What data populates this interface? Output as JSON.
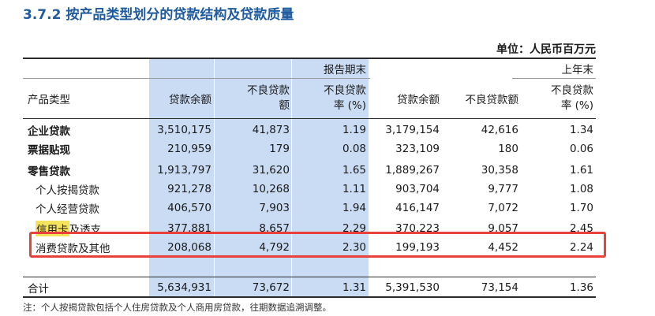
{
  "title": "3.7.2  按产品类型划分的贷款结构及贷款质量",
  "unit": "单位：人民币百万元",
  "header": {
    "period_current": "报告期末",
    "period_prior": "上年末",
    "product_type": "产品类型",
    "loan_balance": "贷款余额",
    "npl_amount_line1": "不良贷款",
    "npl_amount_line2": "额",
    "npl_ratio_line1": "不良贷款",
    "npl_ratio_line2": "率 (%)",
    "prior_loan_balance": "贷款余额",
    "prior_npl_amount": "不良贷款额",
    "prior_npl_ratio_line1": "不良贷款",
    "prior_npl_ratio_line2": "率 (%)"
  },
  "rows": [
    {
      "name": "企业贷款",
      "bold": true,
      "v": [
        "3,510,175",
        "41,873",
        "1.19",
        "3,179,154",
        "42,616",
        "1.34"
      ]
    },
    {
      "name": "票据贴现",
      "bold": true,
      "v": [
        "210,959",
        "179",
        "0.08",
        "323,109",
        "180",
        "0.06"
      ]
    },
    {
      "name": "零售贷款",
      "bold": true,
      "v": [
        "1,913,797",
        "31,620",
        "1.65",
        "1,889,267",
        "30,358",
        "1.61"
      ]
    },
    {
      "name": "个人按揭贷款",
      "bold": false,
      "v": [
        "921,278",
        "10,268",
        "1.11",
        "903,704",
        "9,777",
        "1.08"
      ]
    },
    {
      "name": "个人经营贷款",
      "bold": false,
      "v": [
        "406,570",
        "7,903",
        "1.94",
        "416,147",
        "7,072",
        "1.70"
      ]
    },
    {
      "name_part1": "信用卡",
      "name_part2": "及透支",
      "bold": false,
      "v": [
        "377,881",
        "8,657",
        "2.29",
        "370,223",
        "9,057",
        "2.45"
      ]
    },
    {
      "name": "消费贷款及其他",
      "bold": false,
      "v": [
        "208,068",
        "4,792",
        "2.30",
        "199,193",
        "4,452",
        "2.24"
      ]
    },
    {
      "name": "合计",
      "bold": false,
      "v": [
        "5,634,931",
        "73,672",
        "1.31",
        "5,391,530",
        "73,154",
        "1.36"
      ]
    }
  ],
  "note": "注：个人按揭贷款包括个人住房贷款及个人商用房贷款，往期数据追溯调整。",
  "colors": {
    "title": "#1f5b9e",
    "highlight_column": "#c9dcf3",
    "red_box": "#e8403a",
    "marker": "#f4e35c"
  }
}
